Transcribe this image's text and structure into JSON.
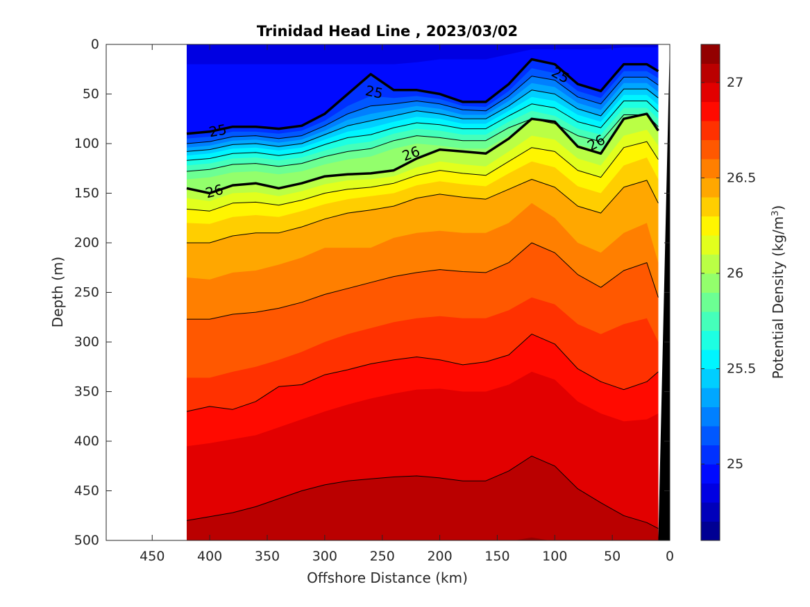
{
  "chart_data": {
    "type": "contour",
    "title": "Trinidad Head Line , 2023/03/02",
    "xlabel": "Offshore Distance (km)",
    "ylabel": "Depth (m)",
    "colorbar_label": "Potential Density (kg/m",
    "colorbar_label_sup": "3",
    "colorbar_label_close": ")",
    "xlim": [
      490,
      0
    ],
    "ylim": [
      500,
      0
    ],
    "x_reversed": true,
    "y_reversed": true,
    "x_ticks": [
      450,
      400,
      350,
      300,
      250,
      200,
      150,
      100,
      50,
      0
    ],
    "y_ticks": [
      0,
      50,
      100,
      150,
      200,
      250,
      300,
      350,
      400,
      450,
      500
    ],
    "colorbar_range": [
      24.6,
      27.2
    ],
    "colorbar_levels_step": 0.1,
    "colorbar_ticks": [
      25,
      25.5,
      26,
      26.5,
      27
    ],
    "colorbar_tick_labels": [
      "25",
      "25.5",
      "26",
      "26.5",
      "27"
    ],
    "data_x_extent": [
      420,
      10
    ],
    "x_stations": [
      420,
      400,
      380,
      360,
      340,
      320,
      300,
      280,
      260,
      240,
      220,
      200,
      180,
      160,
      140,
      120,
      100,
      80,
      60,
      40,
      20,
      10
    ],
    "isopycnals": [
      {
        "sigma": 24.9,
        "depths": [
          20,
          20,
          20,
          20,
          20,
          20,
          20,
          20,
          20,
          20,
          18,
          15,
          15,
          15,
          10,
          5,
          5,
          5,
          5,
          3,
          3,
          3
        ]
      },
      {
        "sigma": 25.0,
        "depths": [
          90,
          88,
          83,
          83,
          85,
          82,
          70,
          50,
          30,
          46,
          46,
          50,
          58,
          58,
          40,
          15,
          20,
          40,
          47,
          20,
          20,
          27
        ]
      },
      {
        "sigma": 25.1,
        "depths": [
          95,
          93,
          88,
          88,
          90,
          87,
          77,
          62,
          52,
          54,
          52,
          55,
          62,
          63,
          47,
          24,
          29,
          47,
          54,
          27,
          27,
          34
        ]
      },
      {
        "sigma": 25.2,
        "depths": [
          100,
          98,
          93,
          92,
          95,
          92,
          82,
          70,
          62,
          60,
          57,
          60,
          66,
          67,
          52,
          32,
          36,
          53,
          60,
          33,
          33,
          41
        ]
      },
      {
        "sigma": 25.3,
        "depths": [
          104,
          102,
          97,
          96,
          99,
          96,
          87,
          76,
          70,
          66,
          62,
          65,
          71,
          71,
          57,
          39,
          43,
          59,
          66,
          39,
          39,
          48
        ]
      },
      {
        "sigma": 25.4,
        "depths": [
          108,
          106,
          101,
          100,
          103,
          100,
          91,
          82,
          77,
          72,
          67,
          70,
          75,
          75,
          62,
          46,
          50,
          65,
          72,
          45,
          45,
          54
        ]
      },
      {
        "sigma": 25.5,
        "depths": [
          112,
          110,
          105,
          104,
          107,
          104,
          96,
          88,
          84,
          78,
          73,
          75,
          80,
          80,
          67,
          53,
          57,
          71,
          78,
          51,
          51,
          61
        ]
      },
      {
        "sigma": 25.6,
        "depths": [
          117,
          115,
          110,
          109,
          112,
          109,
          101,
          94,
          91,
          84,
          79,
          81,
          85,
          85,
          72,
          60,
          64,
          78,
          84,
          57,
          57,
          68
        ]
      },
      {
        "sigma": 25.7,
        "depths": [
          122,
          120,
          115,
          114,
          117,
          114,
          107,
          101,
          98,
          90,
          85,
          87,
          91,
          91,
          78,
          67,
          72,
          85,
          91,
          64,
          64,
          75
        ]
      },
      {
        "sigma": 25.8,
        "depths": [
          128,
          126,
          121,
          120,
          123,
          120,
          113,
          108,
          105,
          97,
          92,
          94,
          97,
          97,
          84,
          75,
          80,
          92,
          98,
          71,
          71,
          83
        ]
      },
      {
        "sigma": 25.9,
        "depths": [
          136,
          134,
          129,
          128,
          131,
          128,
          121,
          116,
          113,
          105,
          100,
          102,
          105,
          105,
          92,
          84,
          89,
          101,
          107,
          80,
          80,
          92
        ]
      },
      {
        "sigma": 26.0,
        "depths": [
          145,
          150,
          142,
          140,
          145,
          140,
          133,
          131,
          130,
          127,
          115,
          106,
          108,
          110,
          95,
          75,
          78,
          103,
          110,
          75,
          70,
          87
        ]
      },
      {
        "sigma": 26.1,
        "depths": [
          155,
          158,
          150,
          149,
          153,
          148,
          141,
          137,
          136,
          133,
          124,
          118,
          121,
          123,
          108,
          92,
          96,
          115,
          122,
          92,
          86,
          102
        ]
      },
      {
        "sigma": 26.2,
        "depths": [
          166,
          168,
          160,
          159,
          162,
          157,
          150,
          146,
          144,
          140,
          132,
          127,
          130,
          132,
          118,
          104,
          108,
          127,
          134,
          104,
          98,
          116
        ]
      },
      {
        "sigma": 26.3,
        "depths": [
          180,
          181,
          174,
          172,
          174,
          168,
          161,
          156,
          153,
          150,
          142,
          138,
          141,
          143,
          130,
          118,
          124,
          143,
          150,
          122,
          114,
          136
        ]
      },
      {
        "sigma": 26.4,
        "depths": [
          200,
          200,
          193,
          190,
          190,
          184,
          176,
          170,
          167,
          163,
          155,
          151,
          154,
          156,
          146,
          136,
          144,
          163,
          170,
          144,
          137,
          160
        ]
      },
      {
        "sigma": 26.5,
        "depths": [
          235,
          237,
          230,
          228,
          222,
          215,
          205,
          205,
          205,
          195,
          190,
          188,
          190,
          190,
          180,
          160,
          175,
          200,
          210,
          190,
          180,
          220
        ]
      },
      {
        "sigma": 26.6,
        "depths": [
          277,
          277,
          272,
          270,
          266,
          260,
          252,
          246,
          240,
          234,
          230,
          227,
          229,
          230,
          220,
          200,
          210,
          232,
          245,
          228,
          220,
          255
        ]
      },
      {
        "sigma": 26.7,
        "depths": [
          336,
          336,
          330,
          325,
          318,
          310,
          300,
          292,
          286,
          280,
          276,
          274,
          276,
          276,
          268,
          255,
          262,
          282,
          292,
          282,
          276,
          300
        ]
      },
      {
        "sigma": 26.8,
        "depths": [
          370,
          365,
          368,
          360,
          345,
          343,
          333,
          328,
          322,
          318,
          315,
          318,
          323,
          320,
          313,
          292,
          302,
          327,
          340,
          348,
          340,
          330
        ]
      },
      {
        "sigma": 26.9,
        "depths": [
          405,
          402,
          398,
          394,
          386,
          378,
          370,
          363,
          357,
          352,
          348,
          347,
          350,
          350,
          343,
          330,
          338,
          360,
          372,
          380,
          378,
          372
        ]
      },
      {
        "sigma": 27.0,
        "depths": [
          480,
          476,
          472,
          466,
          458,
          450,
          444,
          440,
          438,
          436,
          435,
          437,
          440,
          440,
          430,
          415,
          425,
          448,
          462,
          475,
          482,
          488
        ]
      },
      {
        "sigma": 27.1,
        "depths": [
          501,
          501,
          501,
          501,
          501,
          501,
          501,
          501,
          501,
          501,
          501,
          501,
          501,
          501,
          501,
          497,
          501,
          501,
          501,
          501,
          501,
          501
        ]
      }
    ],
    "bold_contours": [
      25,
      26
    ],
    "contour_labels": [
      {
        "text": "25",
        "x": 393,
        "depth": 87,
        "angle": -10
      },
      {
        "text": "25",
        "x": 257,
        "depth": 48,
        "angle": 12
      },
      {
        "text": "25",
        "x": 95,
        "depth": 31,
        "angle": 28
      },
      {
        "text": "26",
        "x": 396,
        "depth": 148,
        "angle": -15
      },
      {
        "text": "26",
        "x": 225,
        "depth": 110,
        "angle": -20
      },
      {
        "text": "26",
        "x": 64,
        "depth": 99,
        "angle": -28
      }
    ],
    "bathymetry": {
      "x": [
        10,
        0,
        0,
        24
      ],
      "depth": [
        500,
        0,
        500,
        500
      ]
    }
  }
}
